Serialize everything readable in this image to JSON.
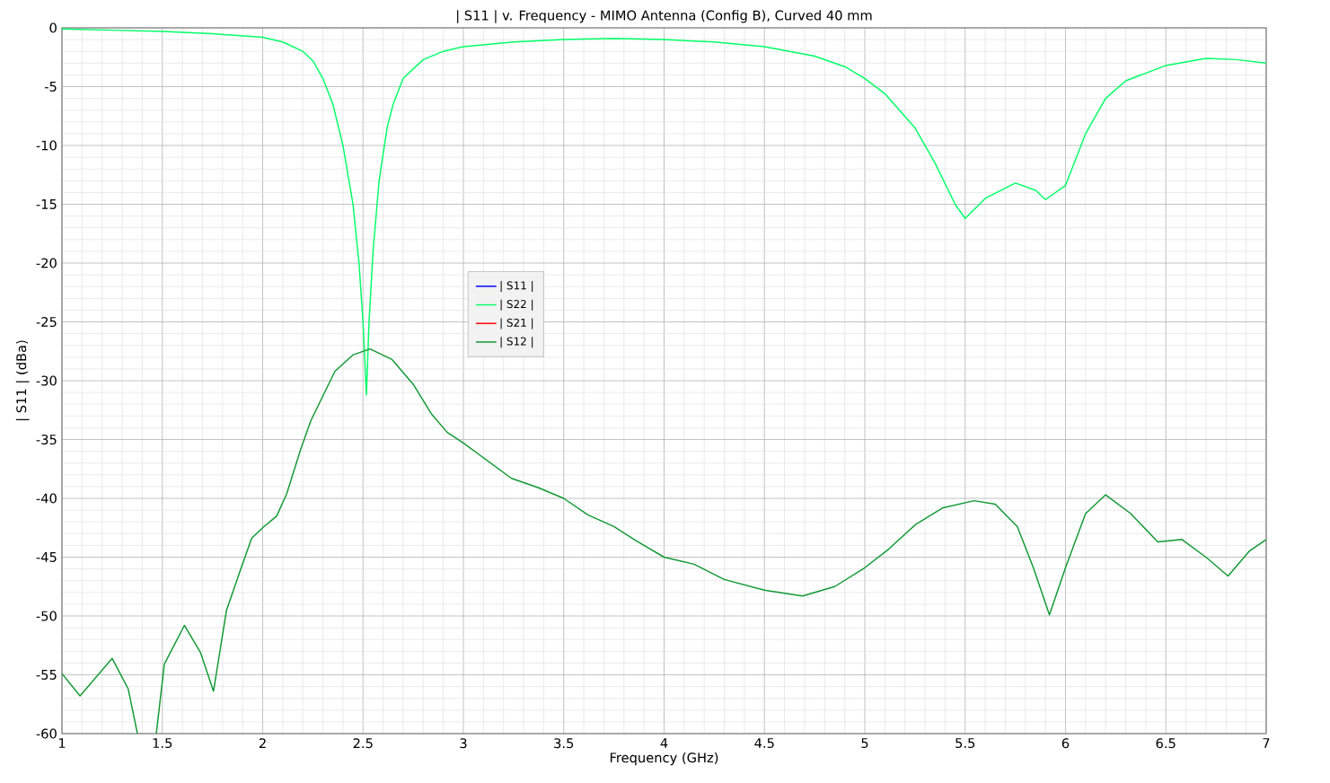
{
  "chart_data": {
    "type": "line",
    "title": "| S11 | v. Frequency - MIMO Antenna (Config B), Curved 40 mm",
    "xlabel": "Frequency (GHz)",
    "ylabel": "| S11 | (dBa)",
    "xlim": [
      1,
      7
    ],
    "ylim": [
      -60,
      0
    ],
    "xticks": [
      1,
      1.5,
      2,
      2.5,
      3,
      3.5,
      4,
      4.5,
      5,
      5.5,
      6,
      6.5,
      7
    ],
    "yticks": [
      0,
      -5,
      -10,
      -15,
      -20,
      -25,
      -30,
      -35,
      -40,
      -45,
      -50,
      -55,
      -60
    ],
    "grid": true,
    "legend": "center",
    "marker": "none",
    "line_style": "solid",
    "series": [
      {
        "name": "| S11 |",
        "color": "#0000ff",
        "values": [
          null
        ]
      },
      {
        "name": "| S22 |",
        "color": "#00ff66",
        "x": [
          1.0,
          1.25,
          1.5,
          1.75,
          2.0,
          2.1,
          2.2,
          2.25,
          2.3,
          2.35,
          2.4,
          2.45,
          2.48,
          2.5,
          2.517,
          2.53,
          2.55,
          2.58,
          2.62,
          2.65,
          2.7,
          2.8,
          2.9,
          3.0,
          3.25,
          3.5,
          3.75,
          4.0,
          4.25,
          4.5,
          4.75,
          4.9,
          5.0,
          5.1,
          5.25,
          5.35,
          5.45,
          5.5,
          5.6,
          5.75,
          5.85,
          5.9,
          6.0,
          6.1,
          6.2,
          6.3,
          6.5,
          6.7,
          6.85,
          7.0
        ],
        "values": [
          -0.1,
          -0.2,
          -0.3,
          -0.5,
          -0.8,
          -1.2,
          -2.0,
          -2.8,
          -4.3,
          -6.5,
          -10,
          -15,
          -20,
          -25,
          -31.2,
          -25,
          -19,
          -13,
          -8.5,
          -6.5,
          -4.3,
          -2.7,
          -2.0,
          -1.6,
          -1.2,
          -1.0,
          -0.9,
          -1.0,
          -1.2,
          -1.6,
          -2.4,
          -3.3,
          -4.3,
          -5.6,
          -8.5,
          -11.5,
          -15,
          -16.2,
          -14.5,
          -13.2,
          -13.8,
          -14.6,
          -13.4,
          -9,
          -6,
          -4.5,
          -3.2,
          -2.6,
          -2.7,
          -3.0
        ]
      },
      {
        "name": "| S21 |",
        "color": "#ff0000",
        "values": [
          null
        ]
      },
      {
        "name": "| S12 |",
        "color": "#119933",
        "x": [
          1.0,
          1.09,
          1.25,
          1.33,
          1.376,
          1.42,
          1.47,
          1.51,
          1.61,
          1.69,
          1.755,
          1.82,
          1.885,
          1.945,
          2.0,
          2.07,
          2.12,
          2.19,
          2.24,
          2.36,
          2.45,
          2.535,
          2.645,
          2.75,
          2.84,
          2.92,
          3.0,
          3.08,
          3.24,
          3.375,
          3.5,
          3.62,
          3.75,
          3.86,
          4.0,
          4.15,
          4.3,
          4.5,
          4.69,
          4.85,
          5.0,
          5.12,
          5.255,
          5.39,
          5.545,
          5.65,
          5.76,
          5.84,
          5.92,
          6.0,
          6.1,
          6.2,
          6.325,
          6.46,
          6.58,
          6.7,
          6.81,
          6.915,
          7.0
        ],
        "values": [
          -54.9,
          -56.8,
          -53.6,
          -56.2,
          -60,
          null,
          -60,
          -54.1,
          -50.8,
          -53.1,
          -56.4,
          -49.5,
          -46.3,
          -43.4,
          -42.5,
          -41.5,
          -39.6,
          -35.8,
          -33.4,
          -29.2,
          -27.8,
          -27.3,
          -28.2,
          -30.3,
          -32.8,
          -34.4,
          -35.3,
          -36.3,
          -38.3,
          -39.1,
          -40.0,
          -41.4,
          -42.4,
          -43.6,
          -45.0,
          -45.6,
          -46.9,
          -47.8,
          -48.3,
          -47.5,
          -45.9,
          -44.3,
          -42.2,
          -40.8,
          -40.2,
          -40.5,
          -42.4,
          -45.9,
          -49.9,
          -45.9,
          -41.3,
          -39.7,
          -41.3,
          -43.7,
          -43.5,
          -45.0,
          -46.6,
          -44.5,
          -43.5
        ]
      }
    ]
  }
}
